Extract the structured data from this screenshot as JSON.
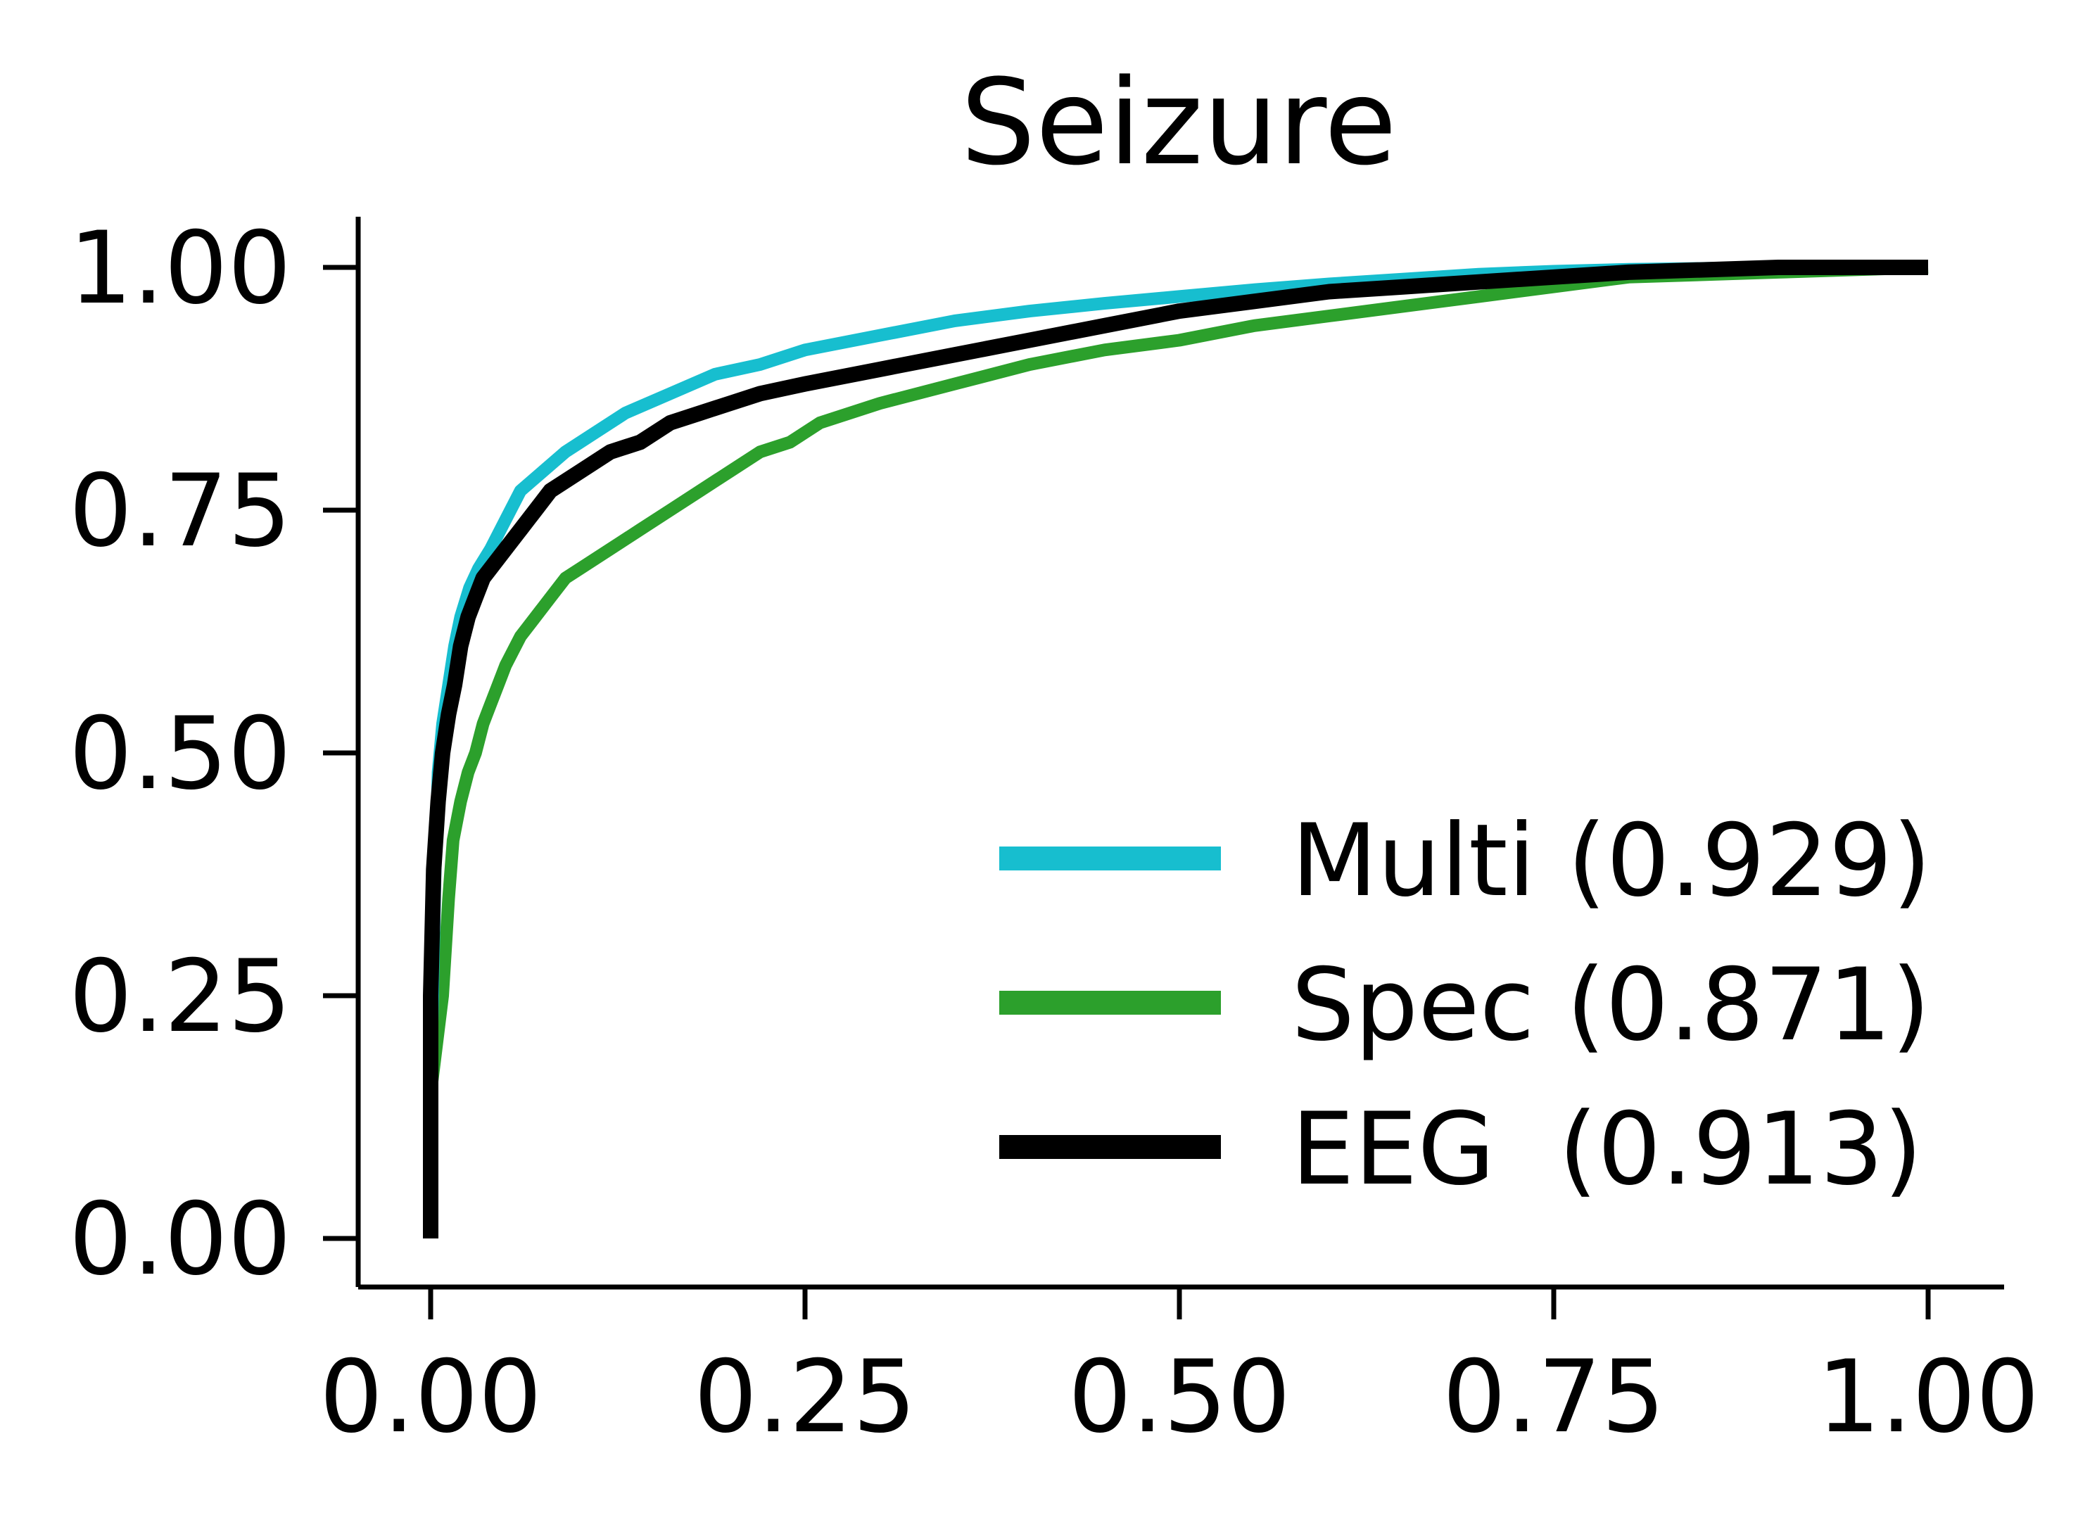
{
  "chart_data": {
    "type": "line",
    "title": "Seizure",
    "xlabel": "",
    "ylabel": "",
    "xlim": [
      -0.05,
      1.05
    ],
    "ylim": [
      -0.05,
      1.05
    ],
    "x_ticks": [
      "0.00",
      "0.25",
      "0.50",
      "0.75",
      "1.00"
    ],
    "y_ticks": [
      "0.00",
      "0.25",
      "0.50",
      "0.75",
      "1.00"
    ],
    "grid": false,
    "legend_position": "bottom-right",
    "series": [
      {
        "name": "Multi (0.929)",
        "color": "#17becf",
        "x": [
          0,
          0,
          0.003,
          0.005,
          0.008,
          0.012,
          0.016,
          0.02,
          0.026,
          0.032,
          0.04,
          0.05,
          0.06,
          0.075,
          0.09,
          0.11,
          0.13,
          0.16,
          0.19,
          0.22,
          0.25,
          0.3,
          0.35,
          0.4,
          0.45,
          0.5,
          0.55,
          0.6,
          0.65,
          0.7,
          0.75,
          0.8,
          0.9,
          1.0
        ],
        "y": [
          0,
          0.15,
          0.38,
          0.48,
          0.53,
          0.57,
          0.61,
          0.64,
          0.67,
          0.69,
          0.71,
          0.74,
          0.77,
          0.79,
          0.81,
          0.83,
          0.85,
          0.87,
          0.89,
          0.9,
          0.915,
          0.93,
          0.945,
          0.955,
          0.963,
          0.97,
          0.977,
          0.983,
          0.988,
          0.993,
          0.996,
          0.998,
          1.0,
          1.0
        ]
      },
      {
        "name": "Spec (0.871)",
        "color": "#2ca02c",
        "x": [
          0,
          0,
          0.008,
          0.012,
          0.015,
          0.02,
          0.025,
          0.03,
          0.035,
          0.04,
          0.045,
          0.05,
          0.06,
          0.07,
          0.08,
          0.09,
          0.1,
          0.12,
          0.14,
          0.16,
          0.18,
          0.2,
          0.22,
          0.24,
          0.26,
          0.3,
          0.35,
          0.4,
          0.45,
          0.5,
          0.55,
          0.6,
          0.65,
          0.7,
          0.75,
          0.8,
          0.9,
          1.0
        ],
        "y": [
          0,
          0.15,
          0.25,
          0.35,
          0.41,
          0.45,
          0.48,
          0.5,
          0.53,
          0.55,
          0.57,
          0.59,
          0.62,
          0.64,
          0.66,
          0.68,
          0.69,
          0.71,
          0.73,
          0.75,
          0.77,
          0.79,
          0.81,
          0.82,
          0.84,
          0.86,
          0.88,
          0.9,
          0.915,
          0.925,
          0.94,
          0.95,
          0.96,
          0.97,
          0.98,
          0.99,
          0.995,
          1.0
        ]
      },
      {
        "name": "EEG  (0.913)",
        "color": "#000000",
        "x": [
          0,
          0,
          0.002,
          0.005,
          0.008,
          0.012,
          0.016,
          0.02,
          0.025,
          0.03,
          0.035,
          0.04,
          0.05,
          0.06,
          0.07,
          0.08,
          0.1,
          0.12,
          0.14,
          0.16,
          0.18,
          0.2,
          0.22,
          0.25,
          0.3,
          0.35,
          0.4,
          0.45,
          0.5,
          0.55,
          0.6,
          0.65,
          0.7,
          0.75,
          0.8,
          0.9,
          1.0
        ],
        "y": [
          0,
          0.25,
          0.38,
          0.45,
          0.5,
          0.54,
          0.57,
          0.61,
          0.64,
          0.66,
          0.68,
          0.69,
          0.71,
          0.73,
          0.75,
          0.77,
          0.79,
          0.81,
          0.82,
          0.84,
          0.85,
          0.86,
          0.87,
          0.88,
          0.895,
          0.91,
          0.925,
          0.94,
          0.955,
          0.965,
          0.975,
          0.98,
          0.985,
          0.99,
          0.995,
          1.0,
          1.0
        ]
      }
    ]
  }
}
